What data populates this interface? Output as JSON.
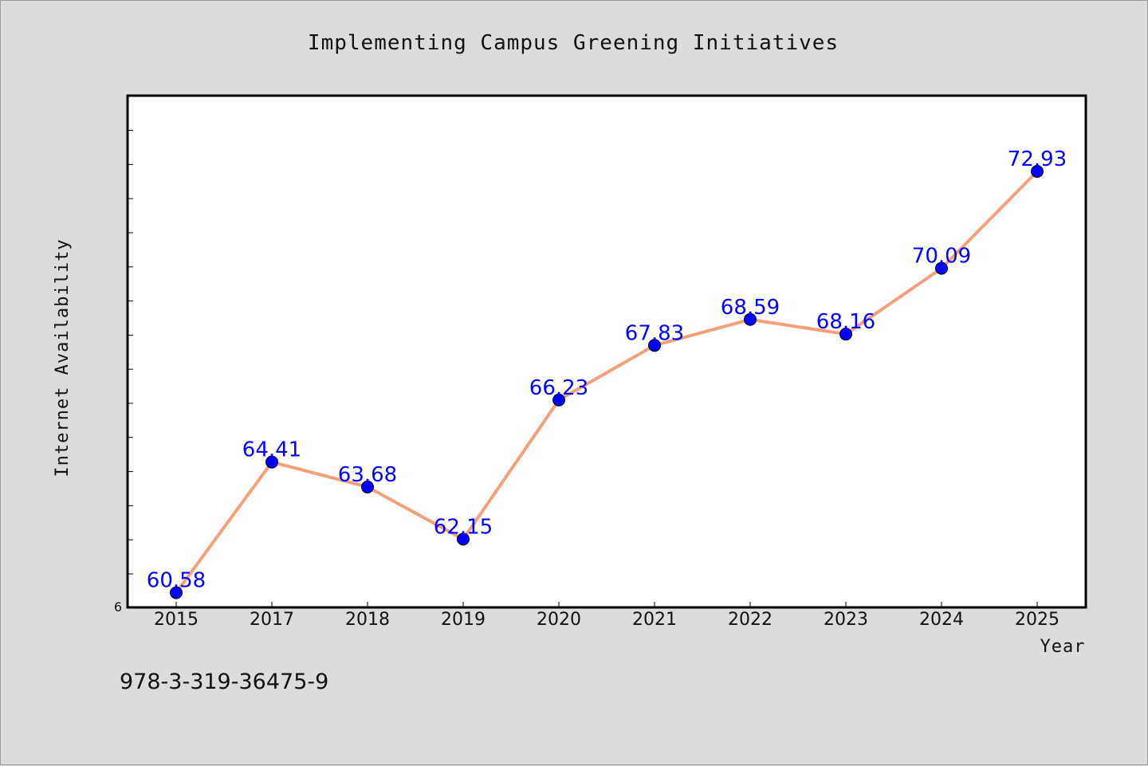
{
  "chart_data": {
    "type": "line",
    "title": "Implementing Campus Greening Initiatives",
    "xlabel": "Year",
    "ylabel": "Internet Availability",
    "categories": [
      "2015",
      "2017",
      "2018",
      "2019",
      "2020",
      "2021",
      "2022",
      "2023",
      "2024",
      "2025"
    ],
    "series": [
      {
        "values": [
          60.58,
          64.41,
          63.68,
          62.15,
          66.23,
          67.83,
          68.59,
          68.16,
          70.09,
          72.93
        ],
        "data_labels": [
          "60.58",
          "64.41",
          "63.68",
          "62.15",
          "66.23",
          "67.83",
          "68.59",
          "68.16",
          "70.09",
          "72.93"
        ]
      }
    ],
    "y_min_label": "6",
    "ylim": [
      60.15,
      75.15
    ],
    "line_color": "#f4a07c",
    "marker_color": "#0000ff",
    "label_color": "#0000ff",
    "grid": false
  },
  "footer": {
    "isbn": "978-3-319-36475-9"
  },
  "colors": {
    "background": "#dcdcdc",
    "plot_background": "#ffffff"
  }
}
